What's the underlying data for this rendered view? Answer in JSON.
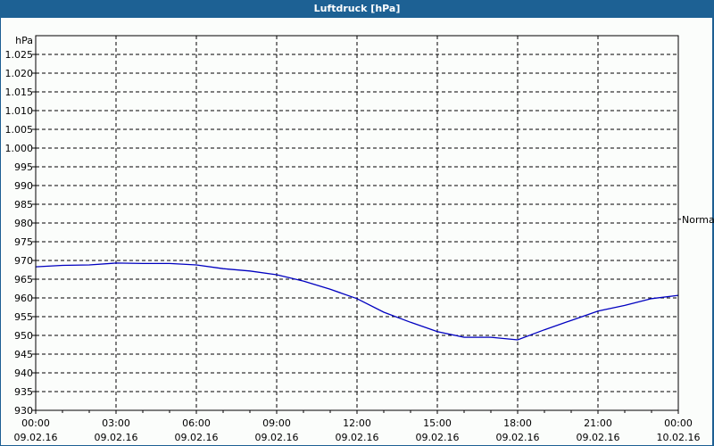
{
  "window": {
    "title": "Luftdruck [hPa]"
  },
  "chart_data": {
    "type": "line",
    "title": "Luftdruck [hPa]",
    "ylabel": "hPa",
    "xlabel": "",
    "ylim": [
      930,
      1025
    ],
    "yticks": [
      "1.025",
      "1.020",
      "1.015",
      "1.010",
      "1.005",
      "1.000",
      "995",
      "990",
      "985",
      "980",
      "975",
      "970",
      "965",
      "960",
      "955",
      "950",
      "945",
      "940",
      "935",
      "930"
    ],
    "xticks": [
      {
        "time": "00:00",
        "date": "09.02.16"
      },
      {
        "time": "03:00",
        "date": "09.02.16"
      },
      {
        "time": "06:00",
        "date": "09.02.16"
      },
      {
        "time": "09:00",
        "date": "09.02.16"
      },
      {
        "time": "12:00",
        "date": "09.02.16"
      },
      {
        "time": "15:00",
        "date": "09.02.16"
      },
      {
        "time": "18:00",
        "date": "09.02.16"
      },
      {
        "time": "21:00",
        "date": "09.02.16"
      },
      {
        "time": "00:00",
        "date": "10.02.16"
      }
    ],
    "grid": true,
    "right_marker": {
      "label": "Normal",
      "value": 981
    },
    "series": [
      {
        "name": "Luftdruck",
        "color": "#0000c0",
        "x_hours": [
          0,
          1,
          2,
          3,
          4,
          5,
          6,
          7,
          8,
          9,
          10,
          11,
          12,
          13,
          14,
          15,
          16,
          17,
          18,
          19,
          20,
          21,
          22,
          23,
          24
        ],
        "values": [
          968.3,
          968.7,
          968.8,
          969.3,
          969.2,
          969.2,
          968.8,
          967.8,
          967.2,
          966.2,
          964.5,
          962.3,
          959.8,
          956.2,
          953.5,
          951.0,
          949.5,
          949.5,
          948.8,
          951.5,
          954.0,
          956.5,
          958.0,
          959.8,
          960.7
        ]
      }
    ]
  },
  "colors": {
    "titlebar": "#1d6194",
    "line": "#0000c0",
    "background": "#fbfdfb"
  }
}
